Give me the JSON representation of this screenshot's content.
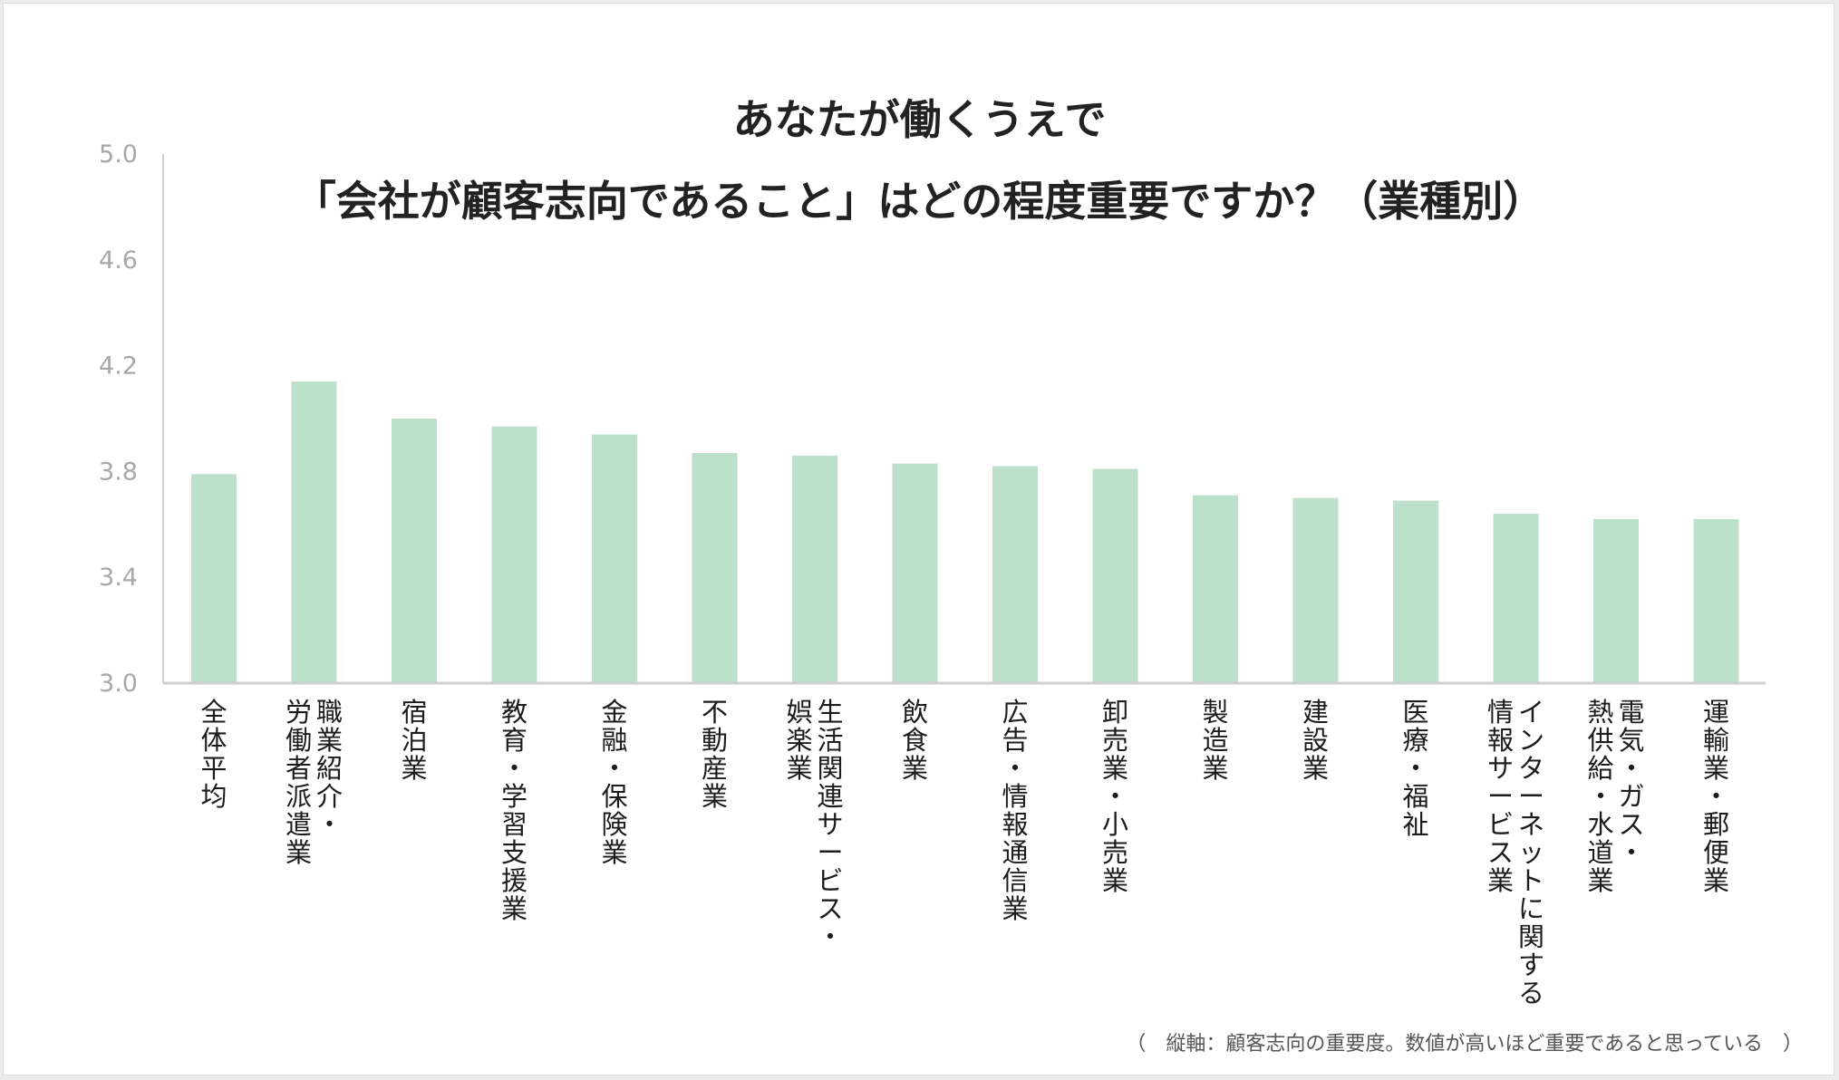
{
  "title": {
    "line1": "あなたが働くうえで",
    "line2": "「会社が顧客志向であること」はどの程度重要ですか？（業種別）"
  },
  "footnote": "（　縦軸：顧客志向の重要度。数値が高いほど重要であると思っている　）",
  "colors": {
    "bar": "#bde0cb",
    "axis": "#cfcfcf",
    "tick_text": "#a8a8a8",
    "label_text": "#1c1c1c"
  },
  "chart_data": {
    "type": "bar",
    "title": "あなたが働くうえで「会社が顧客志向であること」はどの程度重要ですか？（業種別）",
    "xlabel": "",
    "ylabel": "",
    "ylim": [
      3.0,
      5.0
    ],
    "yticks": [
      "3.0",
      "3.4",
      "3.8",
      "4.2",
      "4.6",
      "5.0"
    ],
    "grid": false,
    "categories": [
      [
        "全体平均"
      ],
      [
        "職業紹介・",
        "労働者派遣業"
      ],
      [
        "宿泊業"
      ],
      [
        "教育・学習支援業"
      ],
      [
        "金融・保険業"
      ],
      [
        "不動産業"
      ],
      [
        "生活関連サービス・",
        "娯楽業"
      ],
      [
        "飲食業"
      ],
      [
        "広告・情報通信業"
      ],
      [
        "卸売業・小売業"
      ],
      [
        "製造業"
      ],
      [
        "建設業"
      ],
      [
        "医療・福祉"
      ],
      [
        "インターネットに関する",
        "情報サービス業"
      ],
      [
        "電気・ガス・",
        "熱供給・水道業"
      ],
      [
        "運輸業・郵便業"
      ]
    ],
    "values": [
      3.79,
      4.14,
      4.0,
      3.97,
      3.94,
      3.87,
      3.86,
      3.83,
      3.82,
      3.81,
      3.71,
      3.7,
      3.69,
      3.64,
      3.62,
      3.62
    ]
  }
}
